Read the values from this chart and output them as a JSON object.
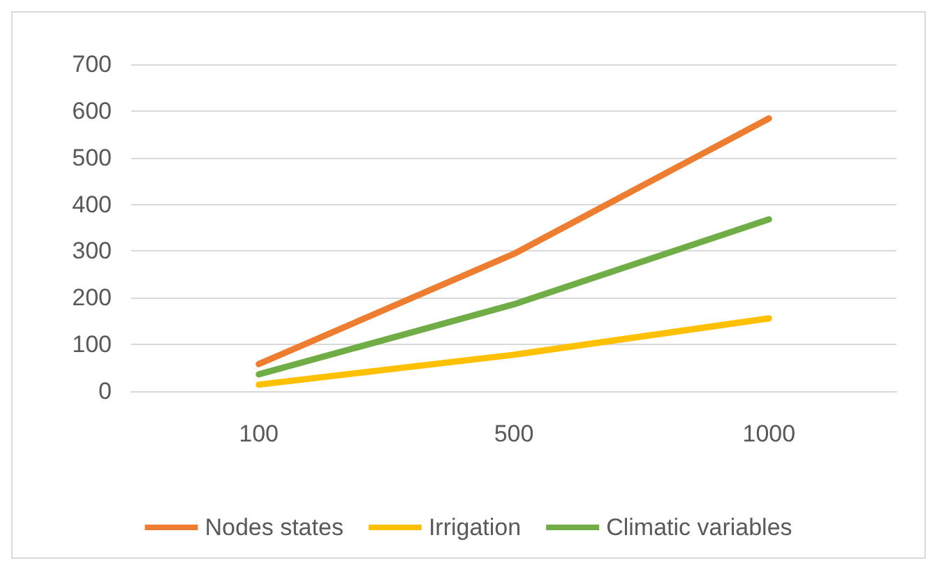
{
  "chart_data": {
    "type": "line",
    "categories": [
      "100",
      "500",
      "1000"
    ],
    "series": [
      {
        "name": "Nodes states",
        "color": "#ed7d31",
        "values": [
          58,
          294,
          584
        ]
      },
      {
        "name": "Irrigation",
        "color": "#ffc000",
        "values": [
          14,
          78,
          156
        ]
      },
      {
        "name": "Climatic variables",
        "color": "#70ad47",
        "values": [
          36,
          186,
          368
        ]
      }
    ],
    "ylim": [
      0,
      700
    ],
    "yticks": [
      0,
      100,
      200,
      300,
      400,
      500,
      600,
      700
    ],
    "grid": "y",
    "legend": "bottom",
    "marker": "none",
    "line_style": "solid"
  }
}
